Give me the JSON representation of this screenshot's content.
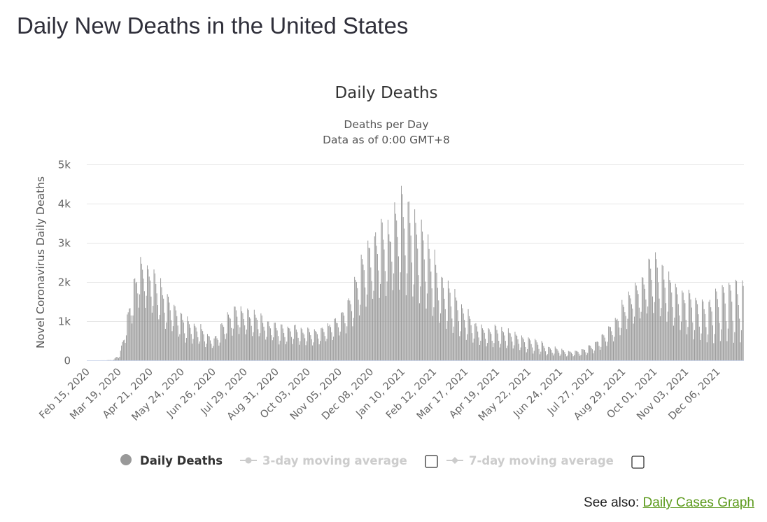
{
  "page": {
    "title": "Daily New Deaths in the United States",
    "see_also_label": "See also:",
    "see_also_link": "Daily Cases Graph"
  },
  "chart_data": {
    "type": "bar",
    "title": "Daily Deaths",
    "subtitle_lines": [
      "Deaths per Day",
      "Data as of 0:00 GMT+8"
    ],
    "xlabel": "",
    "ylabel": "Novel Coronavirus Daily Deaths",
    "ylim": [
      0,
      5000
    ],
    "yticks": [
      0,
      1000,
      2000,
      3000,
      4000,
      5000
    ],
    "ytick_labels": [
      "0",
      "1k",
      "2k",
      "3k",
      "4k",
      "5k"
    ],
    "x_start": "Feb 15, 2020",
    "x_end": "Jan 02, 2022",
    "xticks": [
      "Feb 15, 2020",
      "Mar 19, 2020",
      "Apr 21, 2020",
      "May 24, 2020",
      "Jun 26, 2020",
      "Jul 29, 2020",
      "Aug 31, 2020",
      "Oct 03, 2020",
      "Nov 05, 2020",
      "Dec 08, 2020",
      "Jan 10, 2021",
      "Feb 12, 2021",
      "Mar 17, 2021",
      "Apr 19, 2021",
      "May 22, 2021",
      "Jun 24, 2021",
      "Jul 27, 2021",
      "Aug 29, 2021",
      "Oct 01, 2021",
      "Nov 03, 2021",
      "Dec 06, 2021"
    ],
    "xtick_interval_days": 33,
    "grid": true,
    "bar_color": "#999999",
    "series": [
      {
        "name": "Daily Deaths",
        "weekly_dates": [
          "Feb 15, 2020",
          "Feb 22, 2020",
          "Feb 29, 2020",
          "Mar 07, 2020",
          "Mar 14, 2020",
          "Mar 21, 2020",
          "Mar 28, 2020",
          "Apr 04, 2020",
          "Apr 11, 2020",
          "Apr 18, 2020",
          "Apr 25, 2020",
          "May 02, 2020",
          "May 09, 2020",
          "May 16, 2020",
          "May 23, 2020",
          "May 30, 2020",
          "Jun 06, 2020",
          "Jun 13, 2020",
          "Jun 20, 2020",
          "Jun 27, 2020",
          "Jul 04, 2020",
          "Jul 11, 2020",
          "Jul 18, 2020",
          "Jul 25, 2020",
          "Aug 01, 2020",
          "Aug 08, 2020",
          "Aug 15, 2020",
          "Aug 22, 2020",
          "Aug 29, 2020",
          "Sep 05, 2020",
          "Sep 12, 2020",
          "Sep 19, 2020",
          "Sep 26, 2020",
          "Oct 03, 2020",
          "Oct 10, 2020",
          "Oct 17, 2020",
          "Oct 24, 2020",
          "Oct 31, 2020",
          "Nov 07, 2020",
          "Nov 14, 2020",
          "Nov 21, 2020",
          "Nov 28, 2020",
          "Dec 05, 2020",
          "Dec 12, 2020",
          "Dec 19, 2020",
          "Dec 26, 2020",
          "Jan 02, 2021",
          "Jan 09, 2021",
          "Jan 16, 2021",
          "Jan 23, 2021",
          "Jan 30, 2021",
          "Feb 06, 2021",
          "Feb 13, 2021",
          "Feb 20, 2021",
          "Feb 27, 2021",
          "Mar 06, 2021",
          "Mar 13, 2021",
          "Mar 20, 2021",
          "Mar 27, 2021",
          "Apr 03, 2021",
          "Apr 10, 2021",
          "Apr 17, 2021",
          "Apr 24, 2021",
          "May 01, 2021",
          "May 08, 2021",
          "May 15, 2021",
          "May 22, 2021",
          "May 29, 2021",
          "Jun 05, 2021",
          "Jun 12, 2021",
          "Jun 19, 2021",
          "Jun 26, 2021",
          "Jul 03, 2021",
          "Jul 10, 2021",
          "Jul 17, 2021",
          "Jul 24, 2021",
          "Jul 31, 2021",
          "Aug 07, 2021",
          "Aug 14, 2021",
          "Aug 21, 2021",
          "Aug 28, 2021",
          "Sep 04, 2021",
          "Sep 11, 2021",
          "Sep 18, 2021",
          "Sep 25, 2021",
          "Oct 02, 2021",
          "Oct 09, 2021",
          "Oct 16, 2021",
          "Oct 23, 2021",
          "Oct 30, 2021",
          "Nov 06, 2021",
          "Nov 13, 2021",
          "Nov 20, 2021",
          "Nov 27, 2021",
          "Dec 04, 2021",
          "Dec 11, 2021",
          "Dec 18, 2021",
          "Dec 25, 2021",
          "Jan 01, 2022"
        ],
        "weekly_peak": [
          0,
          0,
          0,
          5,
          20,
          250,
          1200,
          2200,
          2700,
          2600,
          2400,
          2100,
          1800,
          1500,
          1300,
          1100,
          1000,
          900,
          700,
          600,
          950,
          1200,
          1400,
          1400,
          1350,
          1300,
          1200,
          1050,
          1000,
          950,
          900,
          950,
          850,
          850,
          800,
          850,
          950,
          1100,
          1300,
          1600,
          2200,
          2800,
          3100,
          3300,
          3600,
          3500,
          4000,
          4400,
          4200,
          3800,
          3600,
          3200,
          2800,
          2200,
          2000,
          1800,
          1500,
          1300,
          1000,
          900,
          850,
          900,
          850,
          800,
          750,
          650,
          600,
          550,
          500,
          350,
          350,
          300,
          250,
          250,
          300,
          400,
          500,
          700,
          900,
          1100,
          1500,
          1800,
          2000,
          2200,
          2600,
          2700,
          2500,
          2300,
          2000,
          1900,
          1800,
          1700,
          1600,
          1600,
          1800,
          2000,
          2100,
          2100,
          2100
        ],
        "weekly_low": [
          0,
          0,
          0,
          0,
          5,
          80,
          600,
          1100,
          1500,
          1400,
          1200,
          1000,
          800,
          700,
          550,
          450,
          450,
          400,
          350,
          300,
          400,
          600,
          700,
          700,
          650,
          600,
          600,
          500,
          500,
          400,
          400,
          450,
          400,
          400,
          400,
          450,
          500,
          550,
          650,
          750,
          950,
          1200,
          1400,
          1600,
          1700,
          1700,
          1800,
          1800,
          1700,
          1600,
          1500,
          1300,
          1100,
          900,
          800,
          700,
          600,
          500,
          450,
          400,
          350,
          350,
          350,
          300,
          300,
          250,
          200,
          180,
          150,
          120,
          130,
          110,
          100,
          110,
          120,
          150,
          200,
          300,
          400,
          500,
          700,
          900,
          1000,
          1100,
          1200,
          1200,
          1100,
          1000,
          900,
          800,
          600,
          550,
          500,
          450,
          450,
          550,
          500,
          450,
          500
        ]
      }
    ],
    "legend": {
      "position": "bottom",
      "items": [
        {
          "label": "Daily Deaths",
          "color": "#999999",
          "active": true
        },
        {
          "label": "3-day moving average",
          "color": "#cccccc",
          "active": false
        },
        {
          "label": "7-day moving average",
          "color": "#cccccc",
          "active": false
        }
      ]
    }
  }
}
